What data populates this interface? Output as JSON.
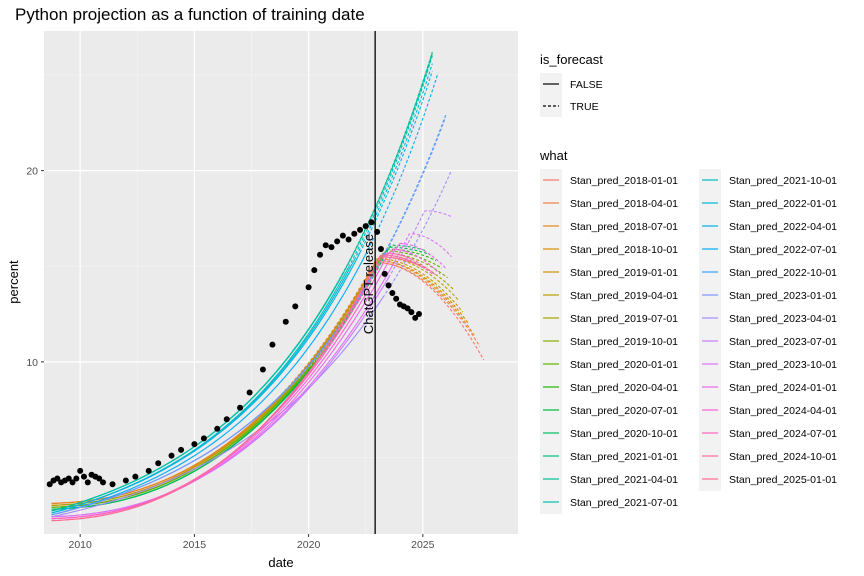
{
  "chart_data": {
    "type": "line",
    "title": "Python projection as a function of training date",
    "xlabel": "date",
    "ylabel": "percent",
    "xlim": [
      "2008-06-01",
      "2029-03-01"
    ],
    "ylim": [
      1.0,
      27.3
    ],
    "x_ticks": [
      "2010",
      "2015",
      "2020",
      "2025"
    ],
    "y_ticks": [
      10,
      20
    ],
    "grid": true,
    "legend_position": "right",
    "annotation": {
      "text": "ChatGPT release",
      "date": "2022-11-30"
    },
    "linetype_legend": {
      "title": "is_forecast",
      "entries": [
        {
          "label": "FALSE",
          "dash": "solid"
        },
        {
          "label": "TRUE",
          "dash": "dashed"
        }
      ]
    },
    "color_legend": {
      "title": "what"
    },
    "series": [
      {
        "name": "Stan_pred_2018-01-01",
        "color": "#F8766D",
        "train_end": "2018-01-01",
        "forecast_end": "2027-09-01",
        "start_value": 2.6,
        "peak_date": "2022-12-01",
        "peak_value": 15.2,
        "forecast_end_value": 10.1
      },
      {
        "name": "Stan_pred_2018-04-01",
        "color": "#EF7F48",
        "train_end": "2018-04-01",
        "forecast_end": "2027-07-01",
        "start_value": 2.6,
        "peak_date": "2022-12-01",
        "peak_value": 15.2,
        "forecast_end_value": 10.8
      },
      {
        "name": "Stan_pred_2018-07-01",
        "color": "#E6861A",
        "train_end": "2018-07-01",
        "forecast_end": "2027-04-01",
        "start_value": 2.6,
        "peak_date": "2022-12-01",
        "peak_value": 15.3,
        "forecast_end_value": 11.4
      },
      {
        "name": "Stan_pred_2018-10-01",
        "color": "#D98D00",
        "train_end": "2018-10-01",
        "forecast_end": "2027-01-01",
        "start_value": 2.5,
        "peak_date": "2023-01-01",
        "peak_value": 15.3,
        "forecast_end_value": 12.0
      },
      {
        "name": "Stan_pred_2019-01-01",
        "color": "#C99600",
        "train_end": "2019-01-01",
        "forecast_end": "2026-10-01",
        "start_value": 2.5,
        "peak_date": "2023-01-01",
        "peak_value": 15.4,
        "forecast_end_value": 12.6
      },
      {
        "name": "Stan_pred_2019-04-01",
        "color": "#B79F00",
        "train_end": "2019-04-01",
        "forecast_end": "2026-08-01",
        "start_value": 2.5,
        "peak_date": "2023-02-01",
        "peak_value": 15.5,
        "forecast_end_value": 13.2
      },
      {
        "name": "Stan_pred_2019-07-01",
        "color": "#A3A500",
        "train_end": "2019-07-01",
        "forecast_end": "2026-05-01",
        "start_value": 2.4,
        "peak_date": "2023-03-01",
        "peak_value": 15.6,
        "forecast_end_value": 13.8
      },
      {
        "name": "Stan_pred_2019-10-01",
        "color": "#88AC00",
        "train_end": "2019-10-01",
        "forecast_end": "2026-02-01",
        "start_value": 2.4,
        "peak_date": "2023-04-01",
        "peak_value": 15.7,
        "forecast_end_value": 14.4
      },
      {
        "name": "Stan_pred_2020-01-01",
        "color": "#62B200",
        "train_end": "2020-01-01",
        "forecast_end": "2025-11-01",
        "start_value": 2.4,
        "peak_date": "2023-05-01",
        "peak_value": 15.8,
        "forecast_end_value": 14.9
      },
      {
        "name": "Stan_pred_2020-04-01",
        "color": "#1EB600",
        "train_end": "2020-04-01",
        "forecast_end": "2025-08-01",
        "start_value": 2.3,
        "peak_date": "2023-06-01",
        "peak_value": 15.9,
        "forecast_end_value": 15.3
      },
      {
        "name": "Stan_pred_2020-07-01",
        "color": "#00BA38",
        "train_end": "2020-07-01",
        "forecast_end": "2025-05-01",
        "start_value": 2.3,
        "peak_date": "2023-07-01",
        "peak_value": 16.0,
        "forecast_end_value": 15.6
      },
      {
        "name": "Stan_pred_2020-10-01",
        "color": "#00BD61",
        "train_end": "2020-10-01",
        "forecast_end": "2025-03-01",
        "start_value": 2.3,
        "peak_date": "2023-08-01",
        "peak_value": 16.1,
        "forecast_end_value": 15.8
      },
      {
        "name": "Stan_pred_2021-01-01",
        "color": "#00BF7D",
        "train_end": "2021-01-01",
        "forecast_end": "2025-06-01",
        "start_value": 2.2,
        "peak_date": "2025-06-01",
        "peak_value": 26.2,
        "forecast_end_value": 26.2
      },
      {
        "name": "Stan_pred_2021-04-01",
        "color": "#00C094",
        "train_end": "2021-04-01",
        "forecast_end": "2025-06-01",
        "start_value": 2.2,
        "peak_date": "2025-06-01",
        "peak_value": 26.2,
        "forecast_end_value": 26.2
      },
      {
        "name": "Stan_pred_2021-07-01",
        "color": "#00C0AA",
        "train_end": "2021-07-01",
        "forecast_end": "2025-06-01",
        "start_value": 2.2,
        "peak_date": "2025-06-01",
        "peak_value": 26.1,
        "forecast_end_value": 26.1
      },
      {
        "name": "Stan_pred_2021-10-01",
        "color": "#00BEC0",
        "train_end": "2021-10-01",
        "forecast_end": "2025-06-01",
        "start_value": 2.1,
        "peak_date": "2025-06-01",
        "peak_value": 26.0,
        "forecast_end_value": 26.0
      },
      {
        "name": "Stan_pred_2022-01-01",
        "color": "#00BAD5",
        "train_end": "2022-01-01",
        "forecast_end": "2025-06-01",
        "start_value": 2.1,
        "peak_date": "2025-06-01",
        "peak_value": 25.6,
        "forecast_end_value": 25.6
      },
      {
        "name": "Stan_pred_2022-04-01",
        "color": "#00B4E8",
        "train_end": "2022-04-01",
        "forecast_end": "2025-06-01",
        "start_value": 2.1,
        "peak_date": "2025-06-01",
        "peak_value": 25.2,
        "forecast_end_value": 25.2
      },
      {
        "name": "Stan_pred_2022-07-01",
        "color": "#00ACF8",
        "train_end": "2022-07-01",
        "forecast_end": "2025-09-01",
        "start_value": 2.0,
        "peak_date": "2025-09-01",
        "peak_value": 25.1,
        "forecast_end_value": 25.1
      },
      {
        "name": "Stan_pred_2022-10-01",
        "color": "#35A2FF",
        "train_end": "2022-10-01",
        "forecast_end": "2026-01-01",
        "start_value": 2.0,
        "peak_date": "2026-01-01",
        "peak_value": 22.9,
        "forecast_end_value": 22.9
      },
      {
        "name": "Stan_pred_2023-01-01",
        "color": "#7997FF",
        "train_end": "2023-01-01",
        "forecast_end": "2026-01-01",
        "start_value": 2.0,
        "peak_date": "2026-01-01",
        "peak_value": 22.8,
        "forecast_end_value": 22.8
      },
      {
        "name": "Stan_pred_2023-04-01",
        "color": "#A58AFF",
        "train_end": "2023-04-01",
        "forecast_end": "2026-04-01",
        "start_value": 1.9,
        "peak_date": "2026-04-01",
        "peak_value": 20.0,
        "forecast_end_value": 20.0
      },
      {
        "name": "Stan_pred_2023-07-01",
        "color": "#C77CFF",
        "train_end": "2023-07-01",
        "forecast_end": "2026-04-01",
        "start_value": 1.9,
        "peak_date": "2025-02-01",
        "peak_value": 17.9,
        "forecast_end_value": 17.6
      },
      {
        "name": "Stan_pred_2023-10-01",
        "color": "#DF70F8",
        "train_end": "2023-10-01",
        "forecast_end": "2026-04-01",
        "start_value": 1.9,
        "peak_date": "2024-06-01",
        "peak_value": 16.7,
        "forecast_end_value": 15.5
      },
      {
        "name": "Stan_pred_2024-01-01",
        "color": "#F066EA",
        "train_end": "2024-01-01",
        "forecast_end": "2026-01-01",
        "start_value": 1.8,
        "peak_date": "2023-12-01",
        "peak_value": 16.2,
        "forecast_end_value": 14.9
      },
      {
        "name": "Stan_pred_2024-04-01",
        "color": "#FB61D7",
        "train_end": "2024-04-01",
        "forecast_end": "2025-10-01",
        "start_value": 1.8,
        "peak_date": "2023-08-01",
        "peak_value": 15.9,
        "forecast_end_value": 14.6
      },
      {
        "name": "Stan_pred_2024-07-01",
        "color": "#FF62BF",
        "train_end": "2024-07-01",
        "forecast_end": "2025-08-01",
        "start_value": 1.8,
        "peak_date": "2023-05-01",
        "peak_value": 15.7,
        "forecast_end_value": 14.5
      },
      {
        "name": "Stan_pred_2024-10-01",
        "color": "#FF67A4",
        "train_end": "2024-10-01",
        "forecast_end": "2025-06-01",
        "start_value": 1.7,
        "peak_date": "2023-03-01",
        "peak_value": 15.6,
        "forecast_end_value": 14.6
      },
      {
        "name": "Stan_pred_2025-01-01",
        "color": "#FF6C91",
        "train_end": "2025-01-01",
        "forecast_end": "2025-04-01",
        "start_value": 1.7,
        "peak_date": "2023-02-01",
        "peak_value": 15.5,
        "forecast_end_value": 14.8
      }
    ],
    "observed": {
      "x": [
        "2008-09",
        "2008-11",
        "2009-01",
        "2009-03",
        "2009-05",
        "2009-07",
        "2009-09",
        "2009-11",
        "2010-01",
        "2010-03",
        "2010-05",
        "2010-07",
        "2010-09",
        "2010-11",
        "2011-01",
        "2011-06",
        "2012-01",
        "2012-06",
        "2013-01",
        "2013-06",
        "2014-01",
        "2014-06",
        "2015-01",
        "2015-06",
        "2016-01",
        "2016-06",
        "2017-01",
        "2017-06",
        "2018-01",
        "2018-06",
        "2019-01",
        "2019-06",
        "2020-01",
        "2020-04",
        "2020-07",
        "2020-10",
        "2021-01",
        "2021-04",
        "2021-07",
        "2021-10",
        "2022-01",
        "2022-04",
        "2022-07",
        "2022-10",
        "2023-01",
        "2023-03",
        "2023-05",
        "2023-07",
        "2023-09",
        "2023-11",
        "2024-01",
        "2024-03",
        "2024-05",
        "2024-07",
        "2024-09",
        "2024-11"
      ],
      "y": [
        3.6,
        3.8,
        3.9,
        3.7,
        3.8,
        3.9,
        3.7,
        3.9,
        4.3,
        4.0,
        3.7,
        4.1,
        4.0,
        3.9,
        3.7,
        3.6,
        3.8,
        4.0,
        4.3,
        4.7,
        5.1,
        5.4,
        5.7,
        6.0,
        6.5,
        7.0,
        7.6,
        8.4,
        9.6,
        10.9,
        12.1,
        12.9,
        13.9,
        14.8,
        15.6,
        16.1,
        16.0,
        16.3,
        16.6,
        16.4,
        16.7,
        16.9,
        17.1,
        17.3,
        16.8,
        15.9,
        14.6,
        14.0,
        13.6,
        13.3,
        13.0,
        12.9,
        12.8,
        12.6,
        12.3,
        12.5
      ]
    }
  }
}
